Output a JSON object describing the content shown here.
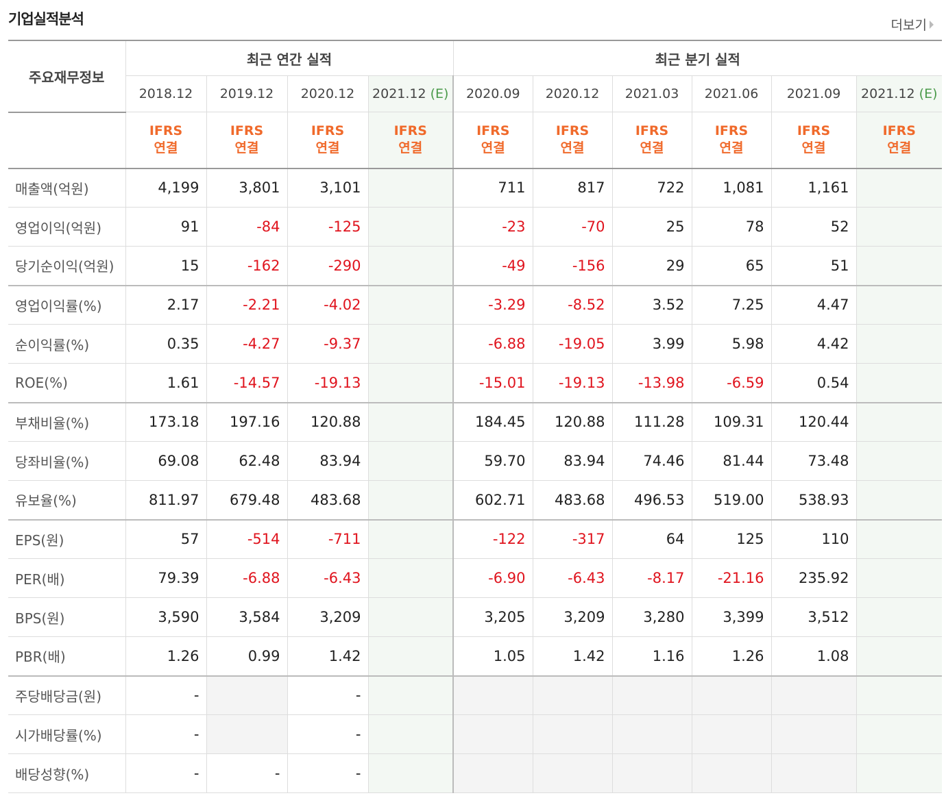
{
  "header": {
    "title": "기업실적분석",
    "more_label": "더보기"
  },
  "table": {
    "corner_label": "주요재무정보",
    "group_annual": "최근 연간 실적",
    "group_quarter": "최근 분기 실적",
    "ifrs_line1": "IFRS",
    "ifrs_line2": "연결",
    "estimate_tag": "(E)",
    "columns": [
      {
        "date": "2018.12",
        "est": false
      },
      {
        "date": "2019.12",
        "est": false
      },
      {
        "date": "2020.12",
        "est": false
      },
      {
        "date": "2021.12",
        "est": true
      },
      {
        "date": "2020.09",
        "est": false
      },
      {
        "date": "2020.12",
        "est": false
      },
      {
        "date": "2021.03",
        "est": false
      },
      {
        "date": "2021.06",
        "est": false
      },
      {
        "date": "2021.09",
        "est": false
      },
      {
        "date": "2021.12",
        "est": true
      }
    ],
    "rows": [
      {
        "label": "매출액(억원)",
        "values": [
          "4,199",
          "3,801",
          "3,101",
          "",
          "711",
          "817",
          "722",
          "1,081",
          "1,161",
          ""
        ]
      },
      {
        "label": "영업이익(억원)",
        "values": [
          "91",
          "-84",
          "-125",
          "",
          "-23",
          "-70",
          "25",
          "78",
          "52",
          ""
        ]
      },
      {
        "label": "당기순이익(억원)",
        "values": [
          "15",
          "-162",
          "-290",
          "",
          "-49",
          "-156",
          "29",
          "65",
          "51",
          ""
        ],
        "group_end": true
      },
      {
        "label": "영업이익률(%)",
        "values": [
          "2.17",
          "-2.21",
          "-4.02",
          "",
          "-3.29",
          "-8.52",
          "3.52",
          "7.25",
          "4.47",
          ""
        ]
      },
      {
        "label": "순이익률(%)",
        "values": [
          "0.35",
          "-4.27",
          "-9.37",
          "",
          "-6.88",
          "-19.05",
          "3.99",
          "5.98",
          "4.42",
          ""
        ]
      },
      {
        "label": "ROE(%)",
        "values": [
          "1.61",
          "-14.57",
          "-19.13",
          "",
          "-15.01",
          "-19.13",
          "-13.98",
          "-6.59",
          "0.54",
          ""
        ],
        "group_end": true
      },
      {
        "label": "부채비율(%)",
        "values": [
          "173.18",
          "197.16",
          "120.88",
          "",
          "184.45",
          "120.88",
          "111.28",
          "109.31",
          "120.44",
          ""
        ]
      },
      {
        "label": "당좌비율(%)",
        "values": [
          "69.08",
          "62.48",
          "83.94",
          "",
          "59.70",
          "83.94",
          "74.46",
          "81.44",
          "73.48",
          ""
        ]
      },
      {
        "label": "유보율(%)",
        "values": [
          "811.97",
          "679.48",
          "483.68",
          "",
          "602.71",
          "483.68",
          "496.53",
          "519.00",
          "538.93",
          ""
        ],
        "group_end": true
      },
      {
        "label": "EPS(원)",
        "values": [
          "57",
          "-514",
          "-711",
          "",
          "-122",
          "-317",
          "64",
          "125",
          "110",
          ""
        ]
      },
      {
        "label": "PER(배)",
        "values": [
          "79.39",
          "-6.88",
          "-6.43",
          "",
          "-6.90",
          "-6.43",
          "-8.17",
          "-21.16",
          "235.92",
          ""
        ]
      },
      {
        "label": "BPS(원)",
        "values": [
          "3,590",
          "3,584",
          "3,209",
          "",
          "3,205",
          "3,209",
          "3,280",
          "3,399",
          "3,512",
          ""
        ]
      },
      {
        "label": "PBR(배)",
        "values": [
          "1.26",
          "0.99",
          "1.42",
          "",
          "1.05",
          "1.42",
          "1.16",
          "1.26",
          "1.08",
          ""
        ],
        "group_end": true
      },
      {
        "label": "주당배당금(원)",
        "values": [
          "-",
          "",
          "-",
          "",
          "",
          "",
          "",
          "",
          "",
          ""
        ],
        "empty_cols": [
          1,
          4,
          5,
          6,
          7,
          8
        ]
      },
      {
        "label": "시가배당률(%)",
        "values": [
          "-",
          "",
          "-",
          "",
          "",
          "",
          "",
          "",
          "",
          ""
        ],
        "empty_cols": [
          1,
          4,
          5,
          6,
          7,
          8
        ]
      },
      {
        "label": "배당성향(%)",
        "values": [
          "-",
          "-",
          "-",
          "",
          "",
          "",
          "",
          "",
          "",
          ""
        ],
        "empty_cols": [
          4,
          5,
          6,
          7,
          8
        ]
      }
    ]
  },
  "colors": {
    "negative": "#e0141e",
    "ifrs": "#f06a2b",
    "estimate_bg": "#f3f8f3",
    "estimate_tag": "#4a9a4a"
  }
}
